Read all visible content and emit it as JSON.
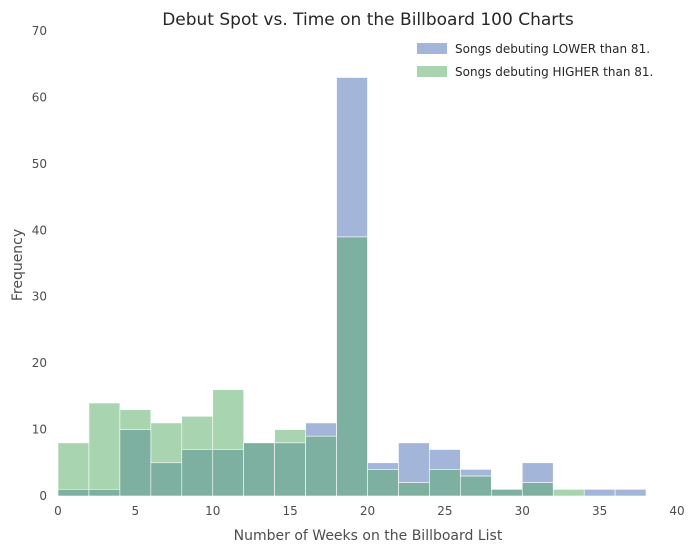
{
  "chart_data": {
    "type": "histogram",
    "title": "Debut Spot vs. Time on the Billboard 100 Charts",
    "xlabel": "Number of Weeks on the Billboard List",
    "ylabel": "Frequency",
    "xlim": [
      0,
      40
    ],
    "ylim": [
      0,
      70
    ],
    "x_ticks": [
      0,
      5,
      10,
      15,
      20,
      25,
      30,
      35,
      40
    ],
    "y_ticks": [
      0,
      10,
      20,
      30,
      40,
      50,
      60,
      70
    ],
    "grid": false,
    "legend_position": "top-right",
    "bin_edges": [
      0,
      2,
      4,
      6,
      8,
      10,
      12,
      14,
      16,
      18,
      20,
      22,
      24,
      26,
      28,
      30,
      32,
      34,
      36,
      38,
      40
    ],
    "series": [
      {
        "name": "Songs debuting LOWER than 81.",
        "color": "#a3b6da",
        "values": [
          1,
          1,
          10,
          5,
          7,
          7,
          8,
          8,
          11,
          63,
          5,
          8,
          7,
          4,
          1,
          5,
          0,
          1,
          1,
          0
        ]
      },
      {
        "name": "Songs debuting HIGHER than 81.",
        "color": "#a8d4b0",
        "values": [
          8,
          14,
          13,
          11,
          12,
          16,
          8,
          10,
          9,
          39,
          4,
          2,
          4,
          3,
          1,
          2,
          1,
          0,
          0,
          0
        ]
      }
    ],
    "overlap_color": "#7db0a0"
  }
}
